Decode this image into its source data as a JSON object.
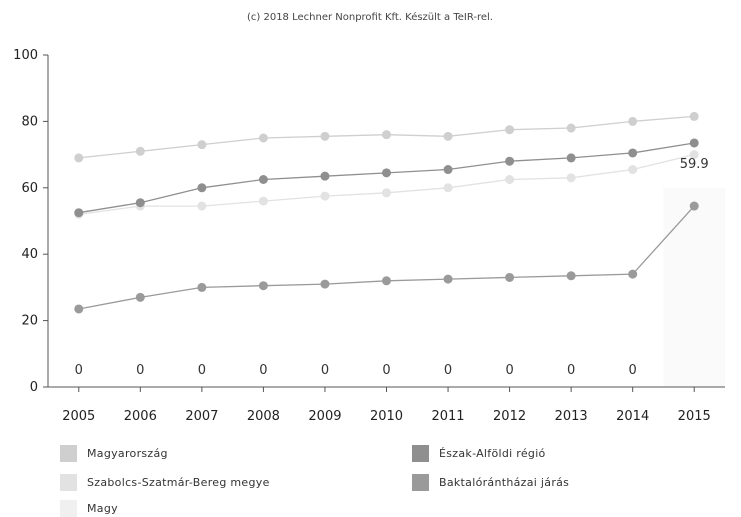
{
  "chart_data": {
    "type": "line",
    "credit": "(c) 2018 Lechner Nonprofit Kft. Készült a TeIR-rel.",
    "x": [
      "2005",
      "2006",
      "2007",
      "2008",
      "2009",
      "2010",
      "2011",
      "2012",
      "2013",
      "2014",
      "2015"
    ],
    "ylim": [
      0,
      100
    ],
    "yticks": [
      "0",
      "20",
      "40",
      "60",
      "80",
      "100"
    ],
    "grid": false,
    "legend_position": "bottom",
    "series": [
      {
        "name": "Magyarország",
        "color": "#cfcfcf",
        "values": [
          69,
          71,
          73,
          75,
          75.5,
          76,
          75.5,
          77.5,
          78,
          80,
          81.5
        ]
      },
      {
        "name": "Észak-Alföldi régió",
        "color": "#8f8f8f",
        "values": [
          52.5,
          55.5,
          60,
          62.5,
          63.5,
          64.5,
          65.5,
          68,
          69,
          70.5,
          73.5
        ]
      },
      {
        "name": "Szabolcs-Szatmár-Bereg megye",
        "color": "#e2e2e2",
        "values": [
          52,
          54.5,
          54.5,
          56,
          57.5,
          58.5,
          60,
          62.5,
          63,
          65.5,
          70
        ]
      },
      {
        "name": "Baktalórántházai járás",
        "color": "#9a9a9a",
        "values": [
          23.5,
          27,
          30,
          30.5,
          31,
          32,
          32.5,
          33,
          33.5,
          34,
          54.5
        ]
      },
      {
        "name": "Magy",
        "color": "#f0f0f0",
        "values": [
          0,
          0,
          0,
          0,
          0,
          0,
          0,
          0,
          0,
          0,
          59.9
        ]
      }
    ],
    "data_labels": [
      "0",
      "0",
      "0",
      "0",
      "0",
      "0",
      "0",
      "0",
      "0",
      "0",
      "59.9"
    ]
  }
}
